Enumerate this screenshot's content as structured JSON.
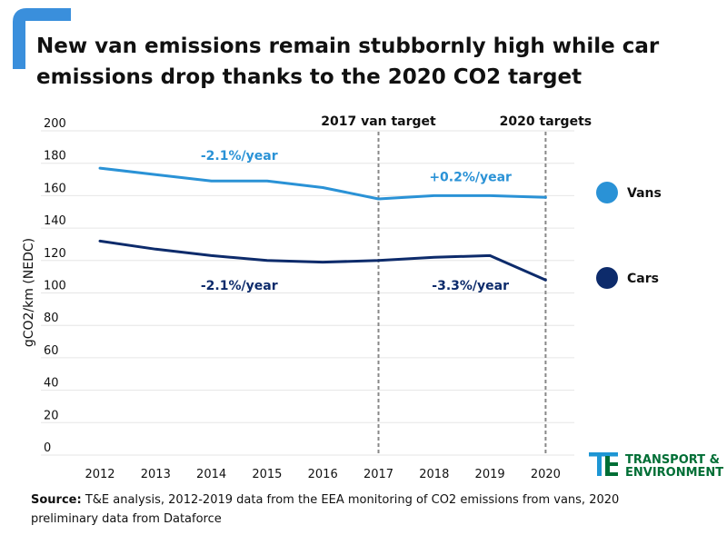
{
  "colors": {
    "accent": "#3a8fdc",
    "vans": "#2a92d6",
    "cars": "#0d2b6b",
    "grid": "#e6e6e6",
    "brand_green": "#006e35",
    "brand_blue": "#1e96d4"
  },
  "header": {
    "title_line1": "New van emissions remain stubbornly high while car",
    "title_line2": "emissions drop thanks to the 2020 CO2 target"
  },
  "chart_data": {
    "type": "line",
    "title": "New van emissions remain stubbornly high while car emissions drop thanks to the 2020 CO2 target",
    "xlabel": "",
    "ylabel": "gCO2/km (NEDC)",
    "x": [
      "2012",
      "2013",
      "2014",
      "2015",
      "2016",
      "2017",
      "2018",
      "2019",
      "2020"
    ],
    "ylim": [
      0,
      200
    ],
    "yticks": [
      0,
      20,
      40,
      60,
      80,
      100,
      120,
      140,
      160,
      180,
      200
    ],
    "grid": true,
    "series": [
      {
        "name": "Vans",
        "color": "#2a92d6",
        "values": [
          177,
          173,
          169,
          169,
          165,
          158,
          160,
          160,
          159
        ]
      },
      {
        "name": "Cars",
        "color": "#0d2b6b",
        "values": [
          132,
          127,
          123,
          120,
          119,
          120,
          122,
          123,
          108
        ]
      }
    ],
    "vlines": [
      {
        "x": "2017",
        "label": "2017 van target"
      },
      {
        "x": "2020",
        "label": "2020 targets"
      }
    ],
    "annotations": [
      {
        "text": "-2.1%/year",
        "series": "Vans",
        "x": 2014.5,
        "y": 182
      },
      {
        "text": "+0.2%/year",
        "series": "Vans",
        "x": 2018.65,
        "y": 169
      },
      {
        "text": "-2.1%/year",
        "series": "Cars",
        "x": 2014.5,
        "y": 102
      },
      {
        "text": "-3.3%/year",
        "series": "Cars",
        "x": 2018.65,
        "y": 102
      }
    ],
    "legend": {
      "placement": "right"
    }
  },
  "brand": {
    "line1": "TRANSPORT &",
    "line2": "ENVIRONMENT"
  },
  "source": {
    "label": "Source:",
    "text": "T&E analysis, 2012-2019 data from the EEA monitoring of CO2 emissions from vans, 2020 preliminary data from Dataforce"
  }
}
